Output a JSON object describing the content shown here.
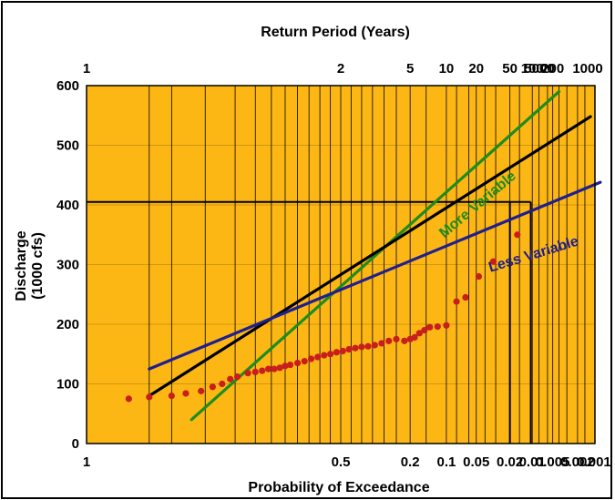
{
  "chart_data": {
    "type": "line",
    "title": "",
    "top_axis_title": "Return Period (Years)",
    "xlabel": "Probability of Exceedance",
    "ylabel_line1": "Discharge",
    "ylabel_line2": "(1000 cfs)",
    "x_scale": "probability",
    "xlim": [
      0.999,
      0.001
    ],
    "ylim": [
      0,
      600
    ],
    "grid": true,
    "background_color": "#FDB714",
    "bottom_ticks": [
      {
        "label": "1",
        "p": 0.999
      },
      {
        "label": "0.5",
        "p": 0.5
      },
      {
        "label": "0.2",
        "p": 0.2
      },
      {
        "label": "0.1",
        "p": 0.1
      },
      {
        "label": "0.05",
        "p": 0.05
      },
      {
        "label": "0.02",
        "p": 0.02
      },
      {
        "label": "0.01",
        "p": 0.01
      },
      {
        "label": "0.005",
        "p": 0.005
      },
      {
        "label": "0.002",
        "p": 0.002
      },
      {
        "label": "0.001",
        "p": 0.001
      }
    ],
    "top_ticks": [
      {
        "label": "1",
        "p": 0.999
      },
      {
        "label": "2",
        "p": 0.5
      },
      {
        "label": "5",
        "p": 0.2
      },
      {
        "label": "10",
        "p": 0.1
      },
      {
        "label": "20",
        "p": 0.05
      },
      {
        "label": "50",
        "p": 0.02
      },
      {
        "label": "100",
        "p": 0.01
      },
      {
        "label": "200",
        "p": 0.005
      },
      {
        "label": "5000",
        "p": 0.0002
      },
      {
        "label": "1000",
        "p": 0.001
      }
    ],
    "grid_probabilities": [
      0.99,
      0.98,
      0.95,
      0.9,
      0.85,
      0.8,
      0.75,
      0.7,
      0.65,
      0.6,
      0.55,
      0.5,
      0.45,
      0.4,
      0.35,
      0.3,
      0.25,
      0.2,
      0.15,
      0.1,
      0.08,
      0.06,
      0.05,
      0.04,
      0.03,
      0.02,
      0.015,
      0.01,
      0.008,
      0.006,
      0.005,
      0.004,
      0.003,
      0.002,
      0.0015,
      0.001
    ],
    "y_ticks": [
      0,
      100,
      200,
      300,
      400,
      500,
      600
    ],
    "series": [
      {
        "name": "More Variable",
        "color": "#1E8C1E",
        "p": [
          0.965,
          0.004
        ],
        "y": [
          40,
          590
        ]
      },
      {
        "name": "",
        "color": "#000000",
        "p": [
          0.99,
          0.0012
        ],
        "y": [
          80,
          548
        ]
      },
      {
        "name": "Less Variable",
        "color": "#1F1F8F",
        "p": [
          0.99,
          0.0008
        ],
        "y": [
          125,
          438
        ]
      }
    ],
    "points": {
      "color": "#C81E1E",
      "p": [
        0.995,
        0.99,
        0.98,
        0.97,
        0.955,
        0.94,
        0.925,
        0.91,
        0.895,
        0.87,
        0.85,
        0.83,
        0.81,
        0.79,
        0.77,
        0.75,
        0.73,
        0.7,
        0.67,
        0.64,
        0.61,
        0.58,
        0.55,
        0.52,
        0.49,
        0.46,
        0.43,
        0.4,
        0.37,
        0.34,
        0.31,
        0.28,
        0.25,
        0.22,
        0.2,
        0.185,
        0.17,
        0.155,
        0.14,
        0.12,
        0.1,
        0.08,
        0.065,
        0.047,
        0.032,
        0.016
      ],
      "y": [
        75,
        78,
        80,
        84,
        88,
        95,
        100,
        108,
        112,
        118,
        120,
        122,
        125,
        125,
        127,
        130,
        132,
        135,
        138,
        142,
        145,
        148,
        150,
        153,
        155,
        158,
        160,
        162,
        163,
        165,
        168,
        172,
        175,
        172,
        175,
        178,
        185,
        190,
        195,
        196,
        198,
        238,
        245,
        280,
        305,
        350
      ]
    },
    "reference_lines": [
      {
        "y": 405,
        "p_left": 0.999,
        "p_right": 0.02,
        "color": "#000000"
      },
      {
        "y": 405,
        "p_left": 0.02,
        "p_right": 0.0105,
        "color": "#000000"
      }
    ],
    "reference_verticals": [
      {
        "p": 0.02,
        "y_bottom": 0,
        "y_top": 405,
        "color": "#000000"
      },
      {
        "p": 0.0105,
        "y_bottom": 0,
        "y_top": 405,
        "color": "#000000"
      }
    ],
    "annotations": [
      {
        "text": "More Variable",
        "p": 0.045,
        "y": 395,
        "color": "#1E8C1E",
        "rotate": -40
      },
      {
        "text": "Less Variable",
        "p": 0.0092,
        "y": 310,
        "color": "#1F1F8F",
        "rotate": -17
      }
    ]
  }
}
